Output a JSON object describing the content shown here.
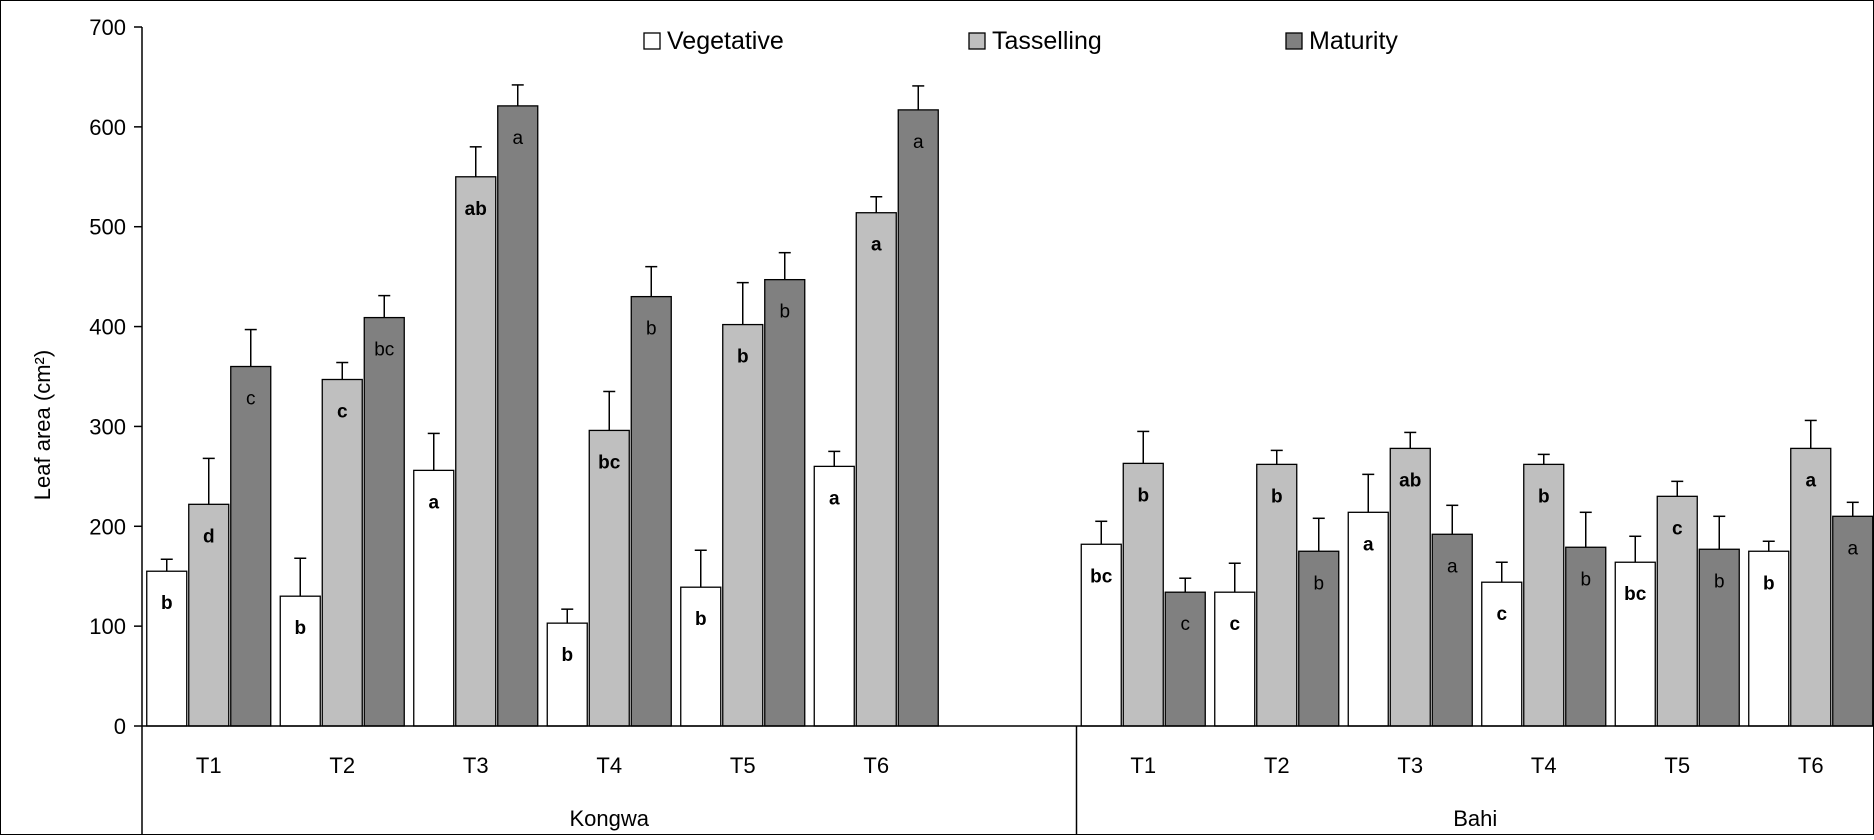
{
  "chart_data": {
    "type": "bar",
    "title": "",
    "xlabel": "",
    "ylabel": "Leaf area (cm²)",
    "ylim": [
      0,
      700
    ],
    "yticks": [
      0,
      100,
      200,
      300,
      400,
      500,
      600,
      700
    ],
    "grid": false,
    "legend_position": "top-center",
    "error_bars": true,
    "groups": [
      {
        "name": "Kongwa",
        "categories": [
          "T1",
          "T2",
          "T3",
          "T4",
          "T5",
          "T6"
        ],
        "series": [
          {
            "name": "Vegetative",
            "color": "#ffffff",
            "values": [
              155,
              130,
              256,
              103,
              139,
              260
            ],
            "errors": [
              12,
              38,
              37,
              14,
              37,
              15
            ],
            "letters": [
              "b",
              "b",
              "a",
              "b",
              "b",
              "a"
            ]
          },
          {
            "name": "Tasselling",
            "color": "#bfbfbf",
            "values": [
              222,
              347,
              550,
              296,
              402,
              514
            ],
            "errors": [
              46,
              17,
              30,
              39,
              42,
              16
            ],
            "letters": [
              "d",
              "c",
              "ab",
              "bc",
              "b",
              "a"
            ]
          },
          {
            "name": "Maturity",
            "color": "#808080",
            "values": [
              360,
              409,
              621,
              430,
              447,
              617
            ],
            "errors": [
              37,
              22,
              21,
              30,
              27,
              24
            ],
            "letters": [
              "c",
              "bc",
              "a",
              "b",
              "b",
              "a"
            ]
          }
        ]
      },
      {
        "name": "Bahi",
        "categories": [
          "T1",
          "T2",
          "T3",
          "T4",
          "T5",
          "T6"
        ],
        "series": [
          {
            "name": "Vegetative",
            "color": "#ffffff",
            "values": [
              182,
              134,
              214,
              144,
              164,
              175
            ],
            "errors": [
              23,
              29,
              38,
              20,
              26,
              10
            ],
            "letters": [
              "bc",
              "c",
              "a",
              "c",
              "bc",
              "b"
            ]
          },
          {
            "name": "Tasselling",
            "color": "#bfbfbf",
            "values": [
              263,
              262,
              278,
              262,
              230,
              278
            ],
            "errors": [
              32,
              14,
              16,
              10,
              15,
              28
            ],
            "letters": [
              "b",
              "b",
              "ab",
              "b",
              "c",
              "a"
            ]
          },
          {
            "name": "Maturity",
            "color": "#808080",
            "values": [
              134,
              175,
              192,
              179,
              177,
              210
            ],
            "errors": [
              14,
              33,
              29,
              35,
              33,
              14
            ],
            "letters": [
              "c",
              "b",
              "a",
              "b",
              "b",
              "a"
            ]
          }
        ]
      }
    ]
  }
}
